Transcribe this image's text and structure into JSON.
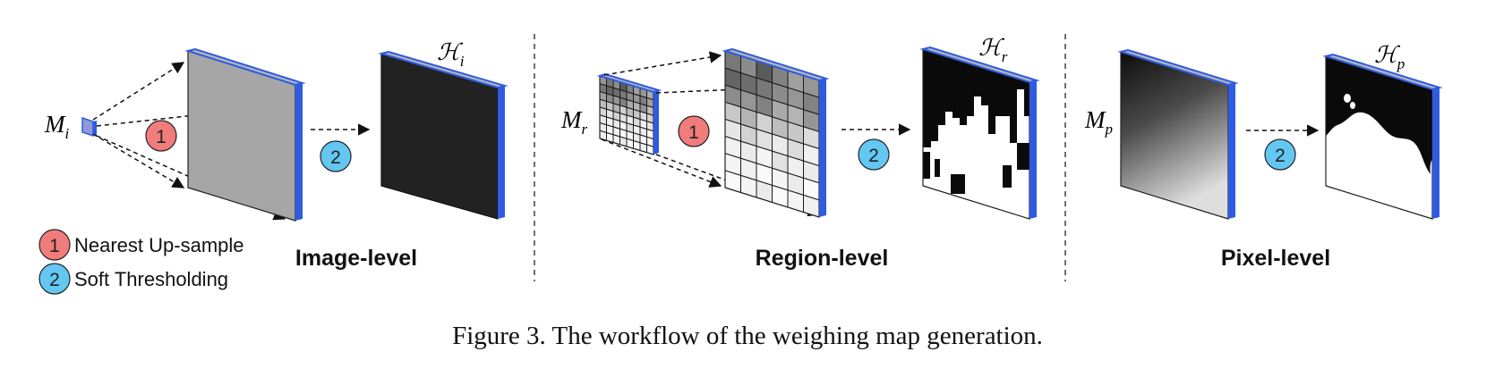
{
  "sections": [
    {
      "label": "Image-level",
      "input_symbol": "M",
      "input_sub": "i",
      "output_symbol": "ℋ",
      "output_sub": "i"
    },
    {
      "label": "Region-level",
      "input_symbol": "M",
      "input_sub": "r",
      "output_symbol": "ℋ",
      "output_sub": "r"
    },
    {
      "label": "Pixel-level",
      "input_symbol": "M",
      "input_sub": "p",
      "output_symbol": "ℋ",
      "output_sub": "p"
    }
  ],
  "steps": [
    {
      "number": "1",
      "label": "Nearest Up-sample",
      "color": "#f07c7c"
    },
    {
      "number": "2",
      "label": "Soft Thresholding",
      "color": "#63c7f2"
    }
  ],
  "colors": {
    "edge_blue": "#2e5be0",
    "side_gray": "#aeb0b6",
    "dark_map": "#222222"
  },
  "caption": "Figure 3. The workflow of the weighing map generation."
}
